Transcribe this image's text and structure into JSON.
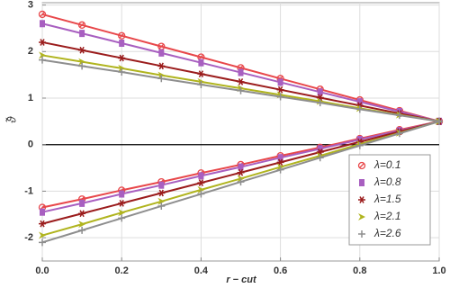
{
  "chart_data": {
    "type": "line",
    "xlabel": "r − cut",
    "ylabel": "ϑ̃",
    "x": [
      0,
      0.1,
      0.2,
      0.3,
      0.4,
      0.5,
      0.6,
      0.7,
      0.8,
      0.9,
      1.0
    ],
    "xlim": [
      0,
      1.0
    ],
    "xticks": [
      {
        "value": 0,
        "label": "0.0"
      },
      {
        "value": 0.2,
        "label": "0.2"
      },
      {
        "value": 0.4,
        "label": "0.4"
      },
      {
        "value": 0.6,
        "label": "0.6"
      },
      {
        "value": 0.8,
        "label": "0.8"
      },
      {
        "value": 1.0,
        "label": "1.0"
      }
    ],
    "ylim": [
      -2.5,
      3.05
    ],
    "yticks": [
      -2,
      -1,
      0,
      1,
      2,
      3
    ],
    "grid": true,
    "legend": "lower right",
    "series": [
      {
        "name": "λ=0.1",
        "color": "#e8474a",
        "marker": "circle-slash",
        "upper": [
          2.8,
          2.57,
          2.34,
          2.11,
          1.88,
          1.65,
          1.42,
          1.19,
          0.96,
          0.73,
          0.5
        ],
        "lower": [
          -1.35,
          -1.17,
          -0.98,
          -0.8,
          -0.61,
          -0.43,
          -0.24,
          -0.06,
          0.13,
          0.32,
          0.5
        ]
      },
      {
        "name": "λ=0.8",
        "color": "#a85fc0",
        "marker": "square",
        "upper": [
          2.6,
          2.39,
          2.18,
          1.97,
          1.76,
          1.55,
          1.34,
          1.13,
          0.92,
          0.71,
          0.5
        ],
        "lower": [
          -1.45,
          -1.26,
          -1.06,
          -0.87,
          -0.67,
          -0.48,
          -0.28,
          -0.09,
          0.11,
          0.3,
          0.5
        ]
      },
      {
        "name": "λ=1.5",
        "color": "#9b1c1c",
        "marker": "star",
        "upper": [
          2.2,
          2.03,
          1.86,
          1.69,
          1.52,
          1.35,
          1.18,
          1.01,
          0.84,
          0.67,
          0.5
        ],
        "lower": [
          -1.7,
          -1.48,
          -1.26,
          -1.04,
          -0.82,
          -0.6,
          -0.38,
          -0.16,
          0.06,
          0.28,
          0.5
        ]
      },
      {
        "name": "λ=2.1",
        "color": "#b0b41e",
        "marker": "arrow",
        "upper": [
          1.92,
          1.78,
          1.64,
          1.49,
          1.35,
          1.21,
          1.07,
          0.93,
          0.78,
          0.64,
          0.5
        ],
        "lower": [
          -1.95,
          -1.71,
          -1.46,
          -1.22,
          -0.97,
          -0.73,
          -0.48,
          -0.24,
          0.01,
          0.25,
          0.5
        ]
      },
      {
        "name": "λ=2.6",
        "color": "#8e8e8e",
        "marker": "plus",
        "upper": [
          1.82,
          1.69,
          1.56,
          1.42,
          1.29,
          1.16,
          1.03,
          0.9,
          0.76,
          0.63,
          0.5
        ],
        "lower": [
          -2.1,
          -1.84,
          -1.58,
          -1.32,
          -1.06,
          -0.8,
          -0.54,
          -0.28,
          -0.02,
          0.24,
          0.5
        ]
      }
    ]
  }
}
